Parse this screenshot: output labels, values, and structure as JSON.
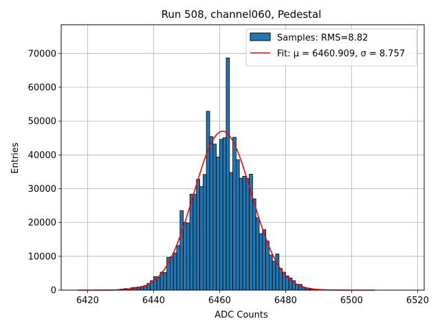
{
  "chart_data": {
    "type": "bar",
    "title": "Run 508, channel060, Pedestal",
    "xlabel": "ADC Counts",
    "ylabel": "Entries",
    "xlim": [
      6412,
      6522
    ],
    "ylim": [
      0,
      78500
    ],
    "x_ticks": [
      6420,
      6440,
      6460,
      6480,
      6500,
      6520
    ],
    "y_ticks": [
      0,
      10000,
      20000,
      30000,
      40000,
      50000,
      60000,
      70000
    ],
    "grid": true,
    "legend_position": "upper-right",
    "colors": {
      "bar_fill": "#1f77b4",
      "bar_edge": "#000000",
      "fit_line": "#ff0000",
      "grid": "#b0b0b0"
    },
    "series": [
      {
        "name": "Samples: RMS=8.82",
        "kind": "histogram",
        "bin_width": 1,
        "bin_starts": [
          6426,
          6427,
          6428,
          6429,
          6430,
          6431,
          6432,
          6433,
          6434,
          6435,
          6436,
          6437,
          6438,
          6439,
          6440,
          6441,
          6442,
          6443,
          6444,
          6445,
          6446,
          6447,
          6448,
          6449,
          6450,
          6451,
          6452,
          6453,
          6454,
          6455,
          6456,
          6457,
          6458,
          6459,
          6460,
          6461,
          6462,
          6463,
          6464,
          6465,
          6466,
          6467,
          6468,
          6469,
          6470,
          6471,
          6472,
          6473,
          6474,
          6475,
          6476,
          6477,
          6478,
          6479,
          6480,
          6481,
          6482,
          6483,
          6484,
          6485,
          6486,
          6487,
          6488,
          6489,
          6490,
          6491,
          6492,
          6493
        ],
        "values": [
          50,
          80,
          120,
          200,
          300,
          450,
          400,
          700,
          800,
          900,
          1100,
          1400,
          2000,
          2800,
          4000,
          3800,
          5300,
          5200,
          9700,
          9800,
          11000,
          13200,
          23500,
          20000,
          19800,
          28400,
          28300,
          32800,
          30600,
          34200,
          52900,
          45400,
          43200,
          39400,
          44600,
          45100,
          68700,
          34800,
          45200,
          38600,
          33100,
          33700,
          33000,
          34300,
          27000,
          21400,
          16700,
          17900,
          14500,
          10400,
          8600,
          10700,
          6400,
          5300,
          4200,
          3600,
          2800,
          1700,
          1700,
          900,
          600,
          300,
          250,
          150,
          100,
          60,
          30,
          20
        ]
      },
      {
        "name": "Fit: μ = 6460.909, σ = 8.757",
        "kind": "gaussian",
        "mu": 6460.909,
        "sigma": 8.757,
        "amplitude": 47000,
        "x_range": [
          6417,
          6507
        ]
      }
    ]
  }
}
